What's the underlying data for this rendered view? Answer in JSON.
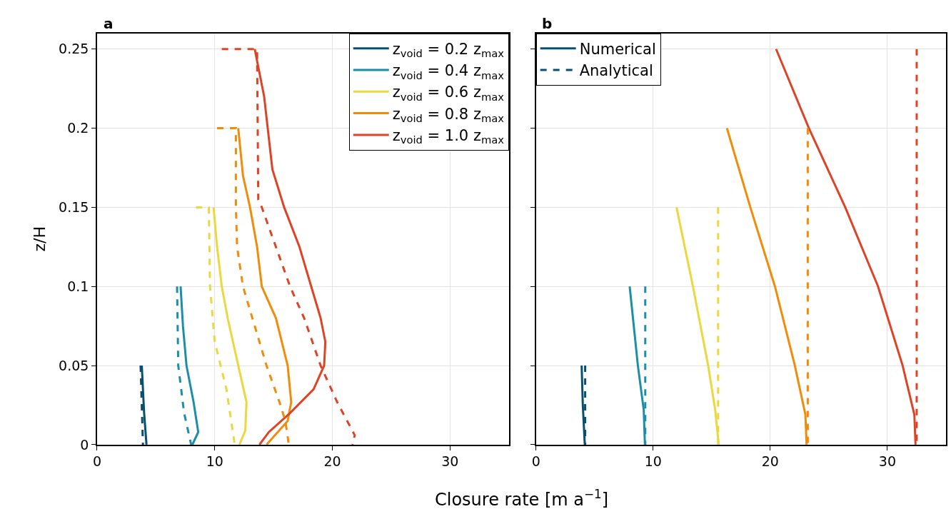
{
  "chart_data": [
    {
      "type": "line",
      "title": "a",
      "ylabel": "z/H",
      "xlabel": "Closure rate [m a$^{−1}$]",
      "xlim": [
        0,
        35
      ],
      "ylim": [
        0,
        0.26
      ],
      "xticks": [
        0,
        10,
        20,
        30
      ],
      "yticks": [
        0,
        0.05,
        0.1,
        0.15,
        0.2,
        0.25
      ],
      "grid": true,
      "legend": "top right",
      "tick_labels": "xy",
      "series": [
        {
          "name": "z$_{void}$ = 0.2 z$_{max}$",
          "color": "#08506e",
          "line_style": "solid",
          "x": [
            3.8,
            3.9,
            4.0,
            4.2
          ],
          "values": [
            0.05,
            0.035,
            0.02,
            0
          ]
        },
        {
          "name": "z$_{void}$ = 0.4 z$_{max}$",
          "color": "#1b8fa8",
          "line_style": "solid",
          "x": [
            7.1,
            7.3,
            7.6,
            8.2,
            8.6,
            8.1
          ],
          "values": [
            0.1,
            0.075,
            0.05,
            0.027,
            0.008,
            0
          ]
        },
        {
          "name": "z$_{void}$ = 0.6 z$_{max}$",
          "color": "#ecd83e",
          "line_style": "solid",
          "x": [
            9.9,
            10.2,
            10.6,
            11.1,
            12.0,
            12.7,
            12.6,
            12.1
          ],
          "values": [
            0.15,
            0.125,
            0.1,
            0.08,
            0.05,
            0.027,
            0.009,
            0
          ]
        },
        {
          "name": "z$_{void}$ = 0.8 z$_{max}$",
          "color": "#f08c0a",
          "line_style": "solid",
          "x": [
            12.0,
            12.4,
            13.0,
            13.6,
            14.0,
            15.2,
            16.2,
            16.5,
            16.2,
            14.4
          ],
          "values": [
            0.2,
            0.17,
            0.15,
            0.125,
            0.1,
            0.08,
            0.05,
            0.027,
            0.015,
            0
          ]
        },
        {
          "name": "z$_{void}$ = 1.0 z$_{max}$",
          "color": "#de4325",
          "line_style": "solid",
          "x": [
            13.4,
            14.2,
            14.9,
            15.9,
            17.2,
            18.2,
            19.0,
            19.4,
            19.3,
            18.4,
            16.4,
            14.6,
            13.8
          ],
          "values": [
            0.25,
            0.22,
            0.174,
            0.15,
            0.125,
            0.1,
            0.08,
            0.065,
            0.05,
            0.035,
            0.02,
            0.008,
            0
          ]
        },
        {
          "color": "#08506e",
          "line_style": "dashed",
          "x": [
            3.7,
            3.8,
            3.9
          ],
          "values": [
            0.05,
            0.025,
            0
          ]
        },
        {
          "color": "#1b8fa8",
          "line_style": "dashed",
          "x": [
            6.8,
            6.9,
            7.4,
            8.0
          ],
          "values": [
            0.1,
            0.05,
            0.02,
            0
          ]
        },
        {
          "color": "#ecd83e",
          "line_style": "dashed",
          "x": [
            8.4,
            9.5,
            9.6,
            10.0,
            11.0,
            11.7
          ],
          "values": [
            0.15,
            0.15,
            0.1,
            0.065,
            0.035,
            0
          ]
        },
        {
          "color": "#f08c0a",
          "line_style": "dashed",
          "x": [
            10.2,
            11.8,
            11.8,
            11.9,
            12.4,
            13.2,
            14.4,
            15.5,
            16.0,
            16.3
          ],
          "values": [
            0.2,
            0.2,
            0.15,
            0.125,
            0.1,
            0.08,
            0.05,
            0.027,
            0.015,
            0
          ]
        },
        {
          "color": "#de4325",
          "line_style": "dashed",
          "x": [
            10.6,
            13.6,
            13.7,
            14.0,
            15.2,
            16.4,
            17.6,
            19.0,
            20.4,
            21.9,
            21.7
          ],
          "values": [
            0.25,
            0.25,
            0.155,
            0.15,
            0.125,
            0.1,
            0.08,
            0.05,
            0.027,
            0.006,
            0
          ]
        }
      ]
    },
    {
      "type": "line",
      "title": "b",
      "xlim": [
        0,
        35
      ],
      "ylim": [
        0,
        0.26
      ],
      "xticks": [
        0,
        10,
        20,
        30
      ],
      "yticks": [
        0,
        0.05,
        0.1,
        0.15,
        0.2,
        0.25
      ],
      "grid": true,
      "legend": "top left",
      "tick_labels": "x",
      "series": [
        {
          "name": "Numerical",
          "color": "#08506e",
          "line_style": "solid",
          "x": [
            3.9,
            4.0,
            4.17
          ],
          "values": [
            0.05,
            0.025,
            0
          ]
        },
        {
          "color": "#1b8fa8",
          "line_style": "solid",
          "x": [
            8.0,
            8.7,
            9.2,
            9.3
          ],
          "values": [
            0.1,
            0.05,
            0.022,
            0
          ]
        },
        {
          "color": "#ecd83e",
          "line_style": "solid",
          "x": [
            12.0,
            13.4,
            14.7,
            15.3,
            15.6
          ],
          "values": [
            0.15,
            0.1,
            0.05,
            0.022,
            0
          ]
        },
        {
          "color": "#f08c0a",
          "line_style": "solid",
          "x": [
            16.3,
            18.3,
            20.4,
            22.1,
            23.0,
            23.1
          ],
          "values": [
            0.2,
            0.15,
            0.1,
            0.05,
            0.019,
            0
          ]
        },
        {
          "color": "#de4325",
          "line_style": "solid",
          "x": [
            20.5,
            23.3,
            26.4,
            29.2,
            31.3,
            32.3,
            32.4
          ],
          "values": [
            0.25,
            0.2,
            0.15,
            0.1,
            0.05,
            0.019,
            0
          ]
        },
        {
          "name": "Analytical",
          "color": "#08506e",
          "line_style": "dashed",
          "x": [
            4.2,
            4.2
          ],
          "values": [
            0.05,
            0
          ]
        },
        {
          "color": "#1b8fa8",
          "line_style": "dashed",
          "x": [
            9.33,
            9.33
          ],
          "values": [
            0.1,
            0
          ]
        },
        {
          "color": "#ecd83e",
          "line_style": "dashed",
          "x": [
            15.55,
            15.55
          ],
          "values": [
            0.15,
            0
          ]
        },
        {
          "color": "#f08c0a",
          "line_style": "dashed",
          "x": [
            23.2,
            23.2
          ],
          "values": [
            0.2,
            0
          ]
        },
        {
          "color": "#de4325",
          "line_style": "dashed",
          "x": [
            32.5,
            32.5
          ],
          "values": [
            0.25,
            0
          ]
        }
      ]
    }
  ]
}
